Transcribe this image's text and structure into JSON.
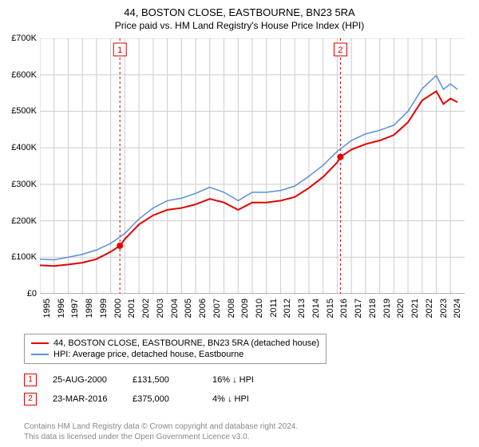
{
  "title": "44, BOSTON CLOSE, EASTBOURNE, BN23 5RA",
  "subtitle": "Price paid vs. HM Land Registry's House Price Index (HPI)",
  "chart": {
    "type": "line",
    "background_color": "#ffffff",
    "grid_color": "#cccccc",
    "ylim": [
      0,
      700000
    ],
    "ytick_step": 100000,
    "yticks_labels": [
      "£0",
      "£100K",
      "£200K",
      "£300K",
      "£400K",
      "£500K",
      "£600K",
      "£700K"
    ],
    "x_start": 1995,
    "x_end": 2025,
    "xticks": [
      1995,
      1996,
      1997,
      1998,
      1999,
      2000,
      2001,
      2002,
      2003,
      2004,
      2005,
      2006,
      2007,
      2008,
      2009,
      2010,
      2011,
      2012,
      2013,
      2014,
      2015,
      2016,
      2017,
      2018,
      2019,
      2020,
      2021,
      2022,
      2023,
      2024
    ],
    "series": [
      {
        "name": "property_price",
        "label": "44, BOSTON CLOSE, EASTBOURNE, BN23 5RA (detached house)",
        "color": "#e60000",
        "line_width": 2,
        "data": [
          [
            1995,
            78000
          ],
          [
            1996,
            76000
          ],
          [
            1997,
            80000
          ],
          [
            1998,
            85000
          ],
          [
            1999,
            95000
          ],
          [
            2000,
            115000
          ],
          [
            2000.65,
            131500
          ],
          [
            2001,
            150000
          ],
          [
            2002,
            190000
          ],
          [
            2003,
            215000
          ],
          [
            2004,
            230000
          ],
          [
            2005,
            235000
          ],
          [
            2006,
            245000
          ],
          [
            2007,
            260000
          ],
          [
            2008,
            250000
          ],
          [
            2009,
            230000
          ],
          [
            2010,
            250000
          ],
          [
            2011,
            250000
          ],
          [
            2012,
            255000
          ],
          [
            2013,
            265000
          ],
          [
            2014,
            290000
          ],
          [
            2015,
            320000
          ],
          [
            2016,
            360000
          ],
          [
            2016.23,
            375000
          ],
          [
            2017,
            395000
          ],
          [
            2018,
            410000
          ],
          [
            2019,
            420000
          ],
          [
            2020,
            435000
          ],
          [
            2021,
            470000
          ],
          [
            2022,
            530000
          ],
          [
            2023,
            555000
          ],
          [
            2023.5,
            520000
          ],
          [
            2024,
            535000
          ],
          [
            2024.5,
            525000
          ]
        ]
      },
      {
        "name": "hpi",
        "label": "HPI: Average price, detached house, Eastbourne",
        "color": "#5b8fd6",
        "line_width": 1.5,
        "data": [
          [
            1995,
            95000
          ],
          [
            1996,
            93000
          ],
          [
            1997,
            100000
          ],
          [
            1998,
            108000
          ],
          [
            1999,
            120000
          ],
          [
            2000,
            138000
          ],
          [
            2001,
            165000
          ],
          [
            2002,
            205000
          ],
          [
            2003,
            235000
          ],
          [
            2004,
            255000
          ],
          [
            2005,
            262000
          ],
          [
            2006,
            275000
          ],
          [
            2007,
            292000
          ],
          [
            2008,
            278000
          ],
          [
            2009,
            255000
          ],
          [
            2010,
            278000
          ],
          [
            2011,
            278000
          ],
          [
            2012,
            283000
          ],
          [
            2013,
            295000
          ],
          [
            2014,
            322000
          ],
          [
            2015,
            352000
          ],
          [
            2016,
            390000
          ],
          [
            2017,
            420000
          ],
          [
            2018,
            438000
          ],
          [
            2019,
            448000
          ],
          [
            2020,
            462000
          ],
          [
            2021,
            500000
          ],
          [
            2022,
            562000
          ],
          [
            2023,
            598000
          ],
          [
            2023.5,
            560000
          ],
          [
            2024,
            575000
          ],
          [
            2024.5,
            560000
          ]
        ]
      }
    ],
    "markers": [
      {
        "n": "1",
        "x": 2000.65,
        "y": 131500,
        "color": "#e60000"
      },
      {
        "n": "2",
        "x": 2016.23,
        "y": 375000,
        "color": "#e60000"
      }
    ],
    "marker_box_color": "#d00000",
    "marker_vline_color": "#d00000",
    "marker_vline_dash": "3,3"
  },
  "legend": {
    "items": [
      {
        "color": "#e60000",
        "label": "44, BOSTON CLOSE, EASTBOURNE, BN23 5RA (detached house)"
      },
      {
        "color": "#5b8fd6",
        "label": "HPI: Average price, detached house, Eastbourne"
      }
    ]
  },
  "sales": [
    {
      "n": "1",
      "date": "25-AUG-2000",
      "price": "£131,500",
      "delta": "16% ↓ HPI"
    },
    {
      "n": "2",
      "date": "23-MAR-2016",
      "price": "£375,000",
      "delta": "4% ↓ HPI"
    }
  ],
  "footer": {
    "line1": "Contains HM Land Registry data © Crown copyright and database right 2024.",
    "line2": "This data is licensed under the Open Government Licence v3.0."
  }
}
